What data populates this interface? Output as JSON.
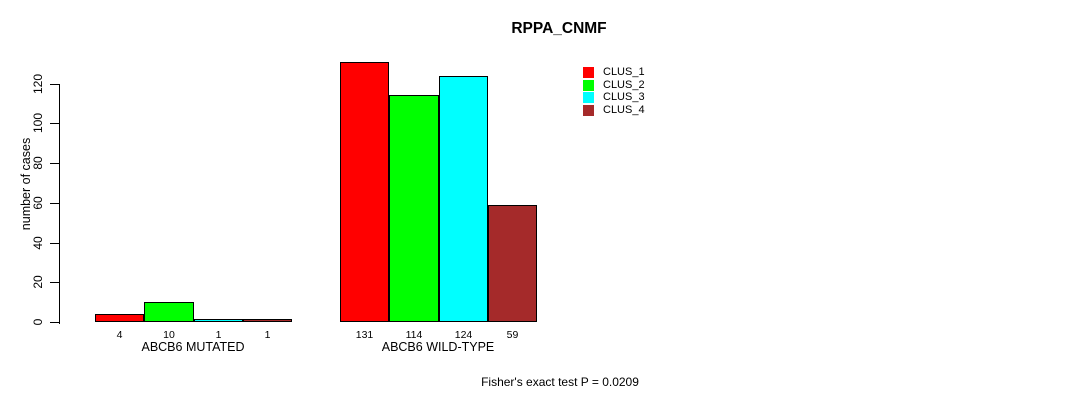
{
  "chart_data": {
    "type": "bar",
    "title": "RPPA_CNMF",
    "ylabel": "number of cases",
    "xlabel": "",
    "groups": [
      {
        "label": "ABCB6 MUTATED"
      },
      {
        "label": "ABCB6 WILD-TYPE"
      }
    ],
    "series": [
      {
        "name": "CLUS_1",
        "color": "#ff0000",
        "values": [
          4,
          131
        ]
      },
      {
        "name": "CLUS_2",
        "color": "#00ff00",
        "values": [
          10,
          114
        ]
      },
      {
        "name": "CLUS_3",
        "color": "#00ffff",
        "values": [
          1,
          124
        ]
      },
      {
        "name": "CLUS_4",
        "color": "#a52a2a",
        "values": [
          1,
          59
        ]
      }
    ],
    "y_ticks": [
      0,
      20,
      40,
      60,
      80,
      100,
      120
    ],
    "ylim": [
      0,
      120
    ],
    "bar_value_labels": true,
    "grid": false,
    "legend_position": "top-right",
    "background": "#ffffff",
    "footnote": "Fisher's exact test P = 0.0209"
  }
}
